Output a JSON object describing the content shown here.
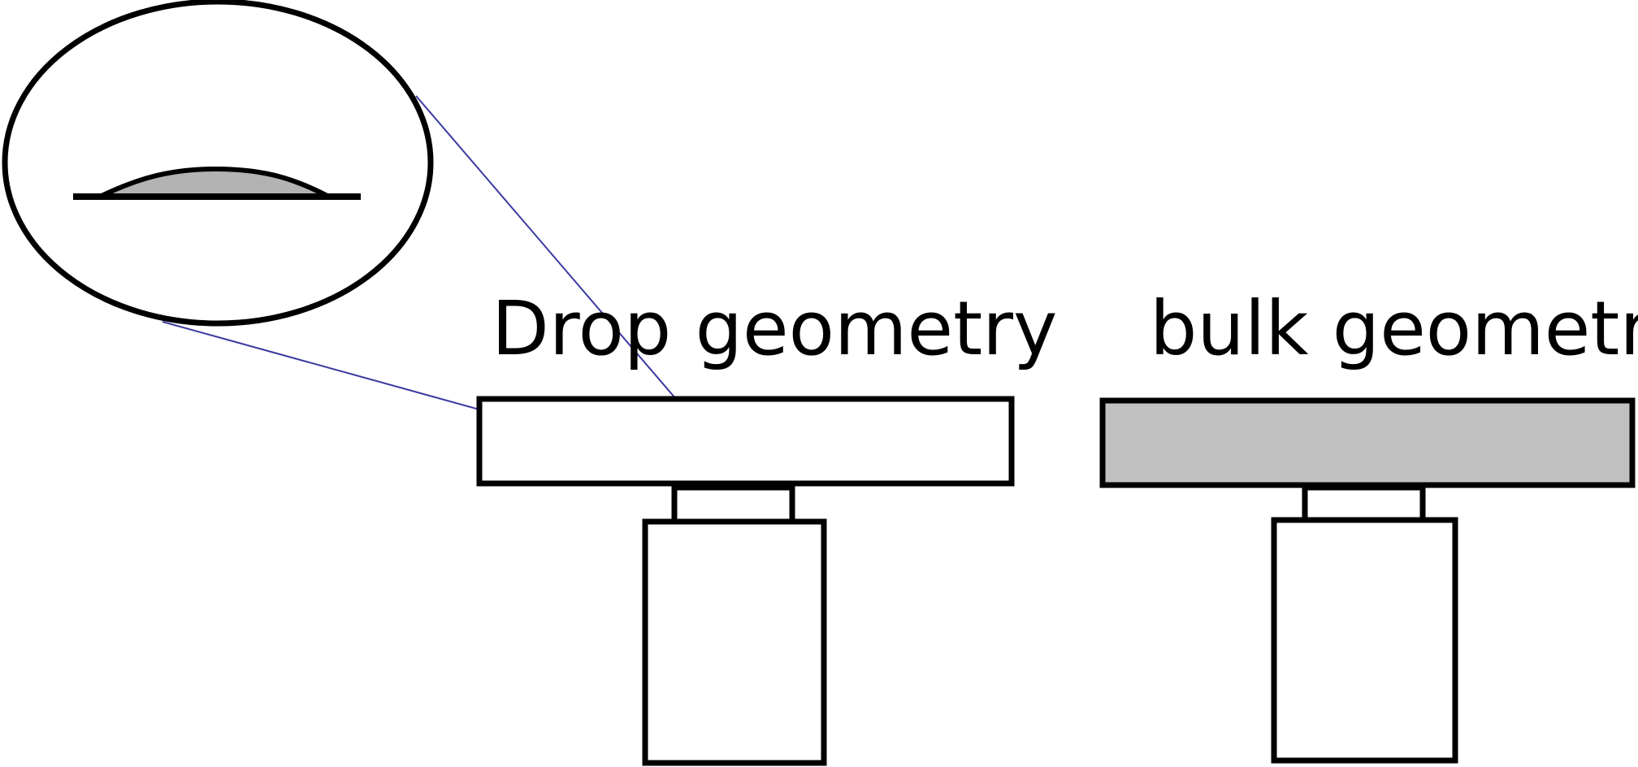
{
  "labels": {
    "drop": "Drop geometry",
    "bulk": "bulk geometry"
  },
  "colors": {
    "stroke": "#000000",
    "fill_gray": "#c0c0c0",
    "drop_fill": "#b3b3b3",
    "zoom_line": "#3a3aa0",
    "background": "#ffffff"
  }
}
